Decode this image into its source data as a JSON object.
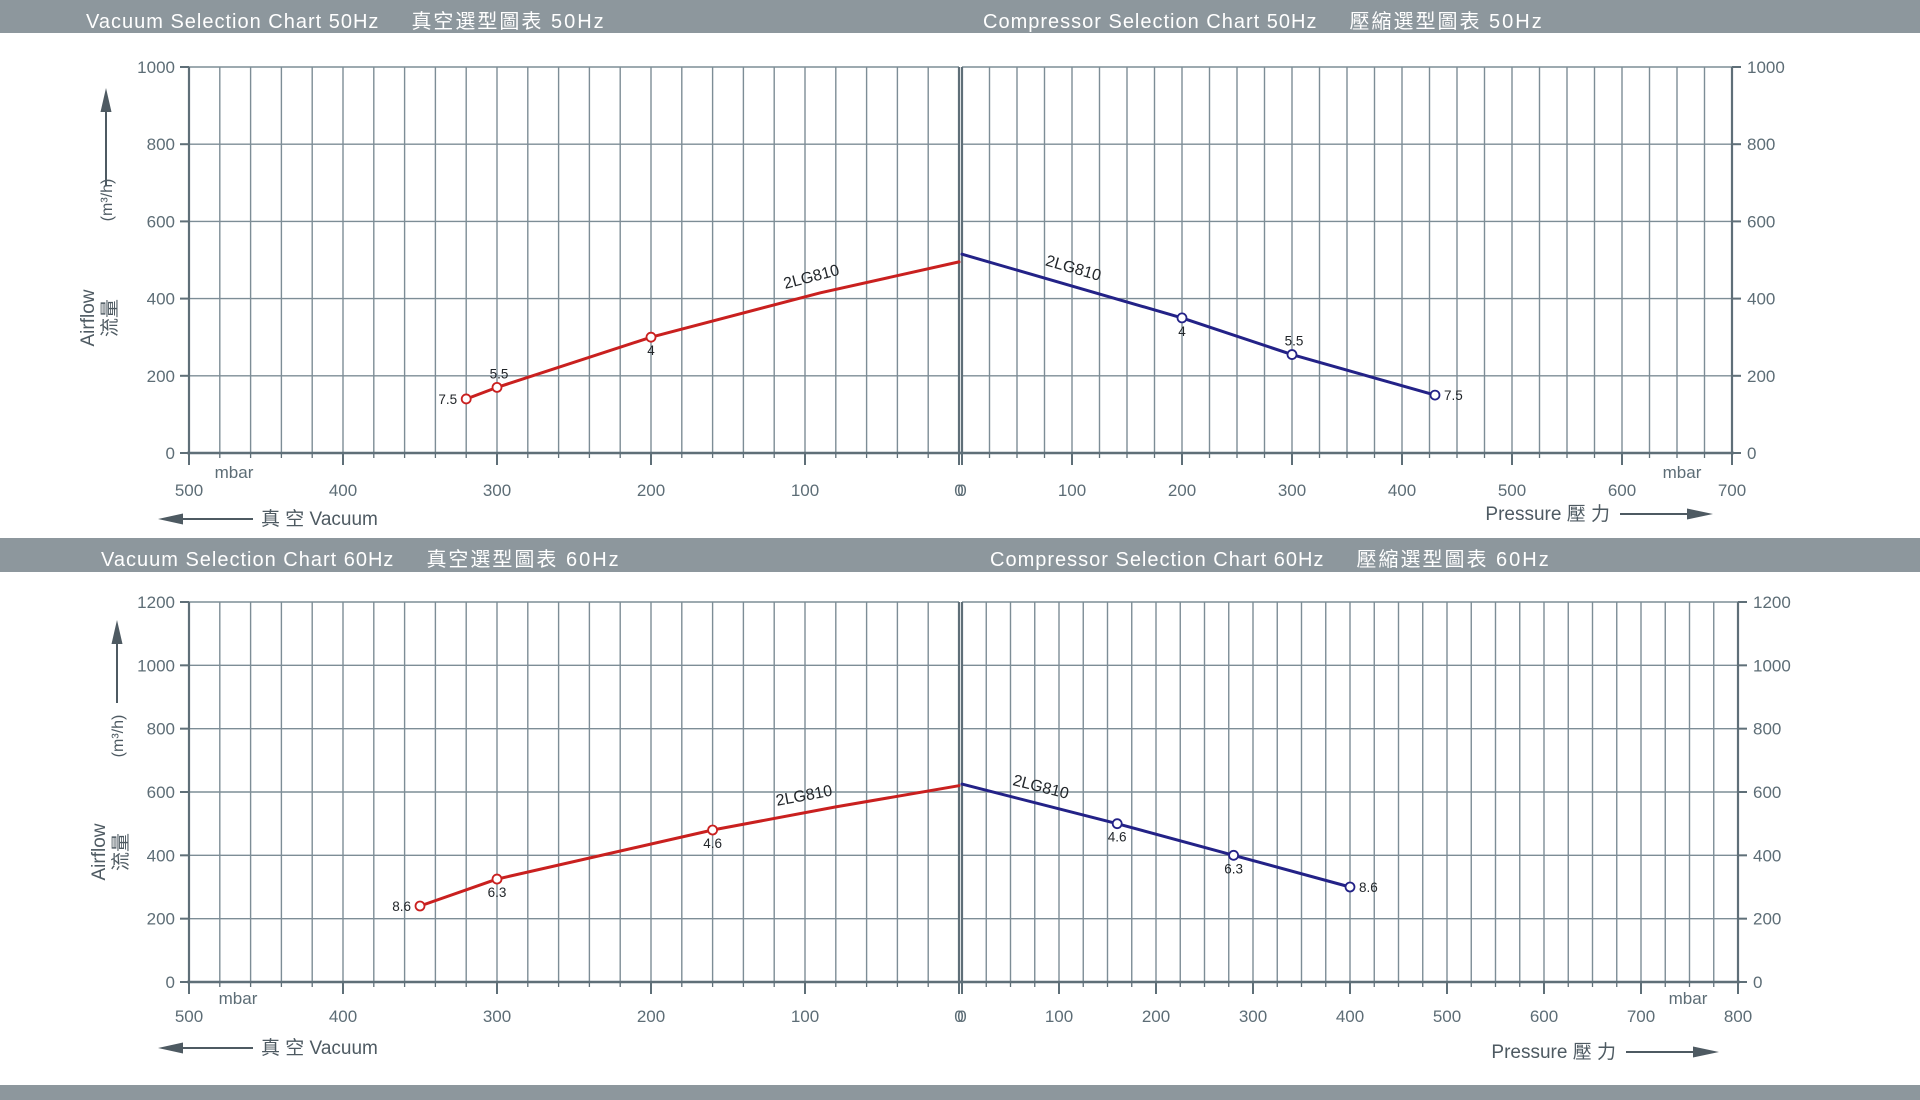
{
  "model": "2LG810",
  "colors": {
    "band": "#8d979d",
    "panel": "#ffffff",
    "grid": "#7d8d96",
    "axis": "#5f6f78",
    "tick_text": "#5d6d76",
    "dir_text": "#4e5a62",
    "title_text": "#ffffff",
    "red": "#c9201f",
    "blue": "#232287",
    "marker_fill": "#ffffff",
    "point_label": "#22262a"
  },
  "headers": {
    "top_left": {
      "en": "Vacuum Selection Chart 50Hz",
      "zh": "真空選型圖表 50Hz"
    },
    "top_right": {
      "en": "Compressor Selection Chart 50Hz",
      "zh": "壓縮選型圖表 50Hz"
    },
    "bottom_left": {
      "en": "Vacuum Selection Chart 60Hz",
      "zh": "真空選型圖表 60Hz"
    },
    "bottom_right": {
      "en": "Compressor Selection Chart 60Hz",
      "zh": "壓縮選型圖表 60Hz"
    }
  },
  "axis_text": {
    "airflow_en": "Airflow",
    "airflow_zh": "流量",
    "unit": "(m³/h)",
    "mbar": "mbar",
    "vacuum_label": "真 空 Vacuum",
    "pressure_label": "Pressure 壓 力"
  },
  "chart_data": [
    {
      "id": "vacuum-50hz",
      "type": "line",
      "title": "Vacuum Selection Chart 50Hz 真空選型圖表 50Hz",
      "mode": "vacuum",
      "x": {
        "unit": "mbar",
        "min": 0,
        "max": 500,
        "major": 100,
        "minor": 20,
        "reversed": true,
        "direction_label": "真 空 Vacuum"
      },
      "y": {
        "unit": "(m³/h)",
        "min": 0,
        "max": 1000,
        "major": 200,
        "label_en": "Airflow",
        "label_zh": "流量"
      },
      "grid": true,
      "series": [
        {
          "name": "2LG810",
          "color_key": "red",
          "points": [
            [
              320,
              140
            ],
            [
              300,
              170
            ],
            [
              200,
              300
            ],
            [
              90,
              415
            ],
            [
              0,
              495
            ]
          ],
          "markers": [
            {
              "x": 320,
              "y": 140,
              "label": "7.5",
              "side": "left"
            },
            {
              "x": 300,
              "y": 170,
              "label": "5.5",
              "side": "top"
            },
            {
              "x": 200,
              "y": 300,
              "label": "4",
              "side": "bottom"
            }
          ],
          "name_label": {
            "text": "2LG810",
            "at_x": 95,
            "offset": -13
          }
        }
      ]
    },
    {
      "id": "compressor-50hz",
      "type": "line",
      "title": "Compressor Selection Chart 50Hz 壓縮選型圖表 50Hz",
      "mode": "pressure",
      "x": {
        "unit": "mbar",
        "min": 0,
        "max": 700,
        "major": 100,
        "minor": 25,
        "reversed": false,
        "direction_label": "Pressure 壓 力"
      },
      "y": {
        "unit": "(m³/h)",
        "min": 0,
        "max": 1000,
        "major": 200
      },
      "grid": true,
      "series": [
        {
          "name": "2LG810",
          "color_key": "blue",
          "points": [
            [
              0,
              515
            ],
            [
              200,
              350
            ],
            [
              300,
              255
            ],
            [
              430,
              150
            ]
          ],
          "markers": [
            {
              "x": 200,
              "y": 350,
              "label": "4",
              "side": "bottom"
            },
            {
              "x": 300,
              "y": 255,
              "label": "5.5",
              "side": "top"
            },
            {
              "x": 430,
              "y": 150,
              "label": "7.5",
              "side": "right"
            }
          ],
          "name_label": {
            "text": "2LG810",
            "at_x": 100,
            "offset": -13
          }
        }
      ]
    },
    {
      "id": "vacuum-60hz",
      "type": "line",
      "title": "Vacuum Selection Chart 60Hz 真空選型圖表 60Hz",
      "mode": "vacuum",
      "x": {
        "unit": "mbar",
        "min": 0,
        "max": 500,
        "major": 100,
        "minor": 20,
        "reversed": true,
        "direction_label": "真 空 Vacuum"
      },
      "y": {
        "unit": "(m³/h)",
        "min": 0,
        "max": 1200,
        "major": 200,
        "label_en": "Airflow",
        "label_zh": "流量"
      },
      "grid": true,
      "series": [
        {
          "name": "2LG810",
          "color_key": "red",
          "points": [
            [
              350,
              240
            ],
            [
              300,
              325
            ],
            [
              160,
              480
            ],
            [
              80,
              553
            ],
            [
              0,
              620
            ]
          ],
          "markers": [
            {
              "x": 350,
              "y": 240,
              "label": "8.6",
              "side": "left"
            },
            {
              "x": 300,
              "y": 325,
              "label": "6.3",
              "side": "bottom"
            },
            {
              "x": 160,
              "y": 480,
              "label": "4.6",
              "side": "bottom"
            }
          ],
          "name_label": {
            "text": "2LG810",
            "at_x": 100,
            "offset": -12
          }
        }
      ]
    },
    {
      "id": "compressor-60hz",
      "type": "line",
      "title": "Compressor Selection Chart 60Hz 壓縮選型圖表 60Hz",
      "mode": "pressure",
      "x": {
        "unit": "mbar",
        "min": 0,
        "max": 800,
        "major": 100,
        "minor": 25,
        "reversed": false,
        "direction_label": "Pressure 壓 力"
      },
      "y": {
        "unit": "(m³/h)",
        "min": 0,
        "max": 1200,
        "major": 200
      },
      "grid": true,
      "series": [
        {
          "name": "2LG810",
          "color_key": "blue",
          "points": [
            [
              0,
              625
            ],
            [
              160,
              500
            ],
            [
              280,
              400
            ],
            [
              400,
              300
            ]
          ],
          "markers": [
            {
              "x": 160,
              "y": 500,
              "label": "4.6",
              "side": "bottom"
            },
            {
              "x": 280,
              "y": 400,
              "label": "6.3",
              "side": "bottom"
            },
            {
              "x": 400,
              "y": 300,
              "label": "8.6",
              "side": "right"
            }
          ],
          "name_label": {
            "text": "2LG810",
            "at_x": 80,
            "offset": -12
          }
        }
      ]
    }
  ]
}
